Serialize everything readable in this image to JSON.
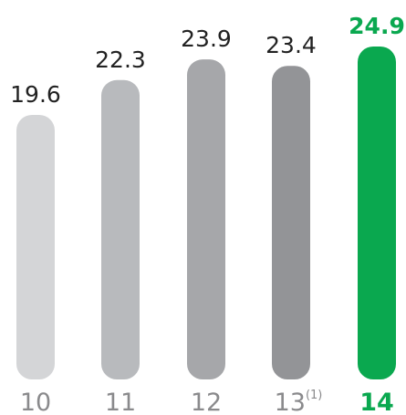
{
  "chart_data": {
    "type": "bar",
    "categories": [
      "10",
      "11",
      "12",
      "13",
      "14"
    ],
    "category_superscripts": [
      "",
      "",
      "",
      "(1)",
      ""
    ],
    "values": [
      19.6,
      22.3,
      23.9,
      23.4,
      24.9
    ],
    "value_labels": [
      "19.6",
      "22.3",
      "23.9",
      "23.4",
      "24.9"
    ],
    "highlight_index": 4,
    "colors": [
      "#d4d5d7",
      "#b8babd",
      "#a6a7aa",
      "#939497",
      "#0aa84f"
    ],
    "label_color": "#222222",
    "axis_label_color": "#8a8a8c",
    "highlight_color": "#0aa84f",
    "title": "",
    "xlabel": "",
    "ylabel": "",
    "grid": false,
    "legend": "none"
  }
}
